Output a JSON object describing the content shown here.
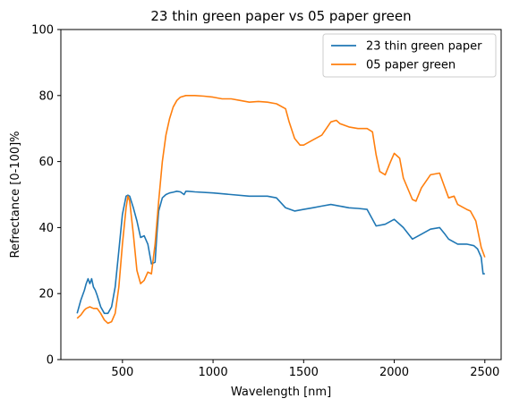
{
  "chart_data": {
    "type": "line",
    "title": "23 thin green paper vs 05 paper green",
    "xlabel": "Wavelength [nm]",
    "ylabel": "Refrectance [0-100]%",
    "xlim": [
      160,
      2590
    ],
    "ylim": [
      0,
      100
    ],
    "xticks": [
      500,
      1000,
      1500,
      2000,
      2500
    ],
    "yticks": [
      0,
      20,
      40,
      60,
      80,
      100
    ],
    "grid": false,
    "legend_position": "top-right",
    "series": [
      {
        "name": "23 thin green paper",
        "color": "#1f77b4",
        "x": [
          250,
          270,
          290,
          300,
          310,
          320,
          330,
          340,
          350,
          360,
          380,
          400,
          420,
          440,
          460,
          480,
          500,
          520,
          530,
          540,
          560,
          580,
          600,
          620,
          640,
          660,
          680,
          690,
          700,
          720,
          740,
          760,
          780,
          800,
          820,
          840,
          850,
          860,
          900,
          1000,
          1100,
          1200,
          1300,
          1350,
          1400,
          1450,
          1500,
          1550,
          1600,
          1650,
          1700,
          1750,
          1800,
          1850,
          1900,
          1950,
          2000,
          2050,
          2100,
          2150,
          2200,
          2250,
          2280,
          2300,
          2350,
          2400,
          2440,
          2460,
          2480,
          2490,
          2500
        ],
        "values": [
          14,
          18,
          21,
          23,
          24.5,
          23,
          24.5,
          22,
          21,
          19.5,
          16,
          14,
          14,
          16,
          22,
          33,
          44,
          49.5,
          49.8,
          49.5,
          46,
          42,
          37,
          37.5,
          35,
          29,
          29.5,
          38,
          45,
          49,
          50,
          50.5,
          50.7,
          51,
          50.8,
          50,
          51,
          51,
          50.8,
          50.5,
          50,
          49.5,
          49.5,
          49,
          46,
          45,
          45.5,
          46,
          46.5,
          47,
          46.5,
          46,
          45.8,
          45.5,
          40.5,
          41,
          42.5,
          40,
          36.5,
          38,
          39.5,
          40,
          38,
          36.5,
          35,
          35,
          34.5,
          33.5,
          31,
          26,
          26
        ]
      },
      {
        "name": "05 paper green",
        "color": "#ff7f0e",
        "x": [
          250,
          270,
          290,
          300,
          320,
          340,
          360,
          380,
          400,
          420,
          440,
          460,
          480,
          500,
          520,
          530,
          540,
          560,
          580,
          600,
          620,
          640,
          660,
          680,
          700,
          720,
          740,
          760,
          780,
          800,
          820,
          850,
          900,
          950,
          1000,
          1050,
          1100,
          1150,
          1200,
          1250,
          1300,
          1350,
          1400,
          1420,
          1450,
          1480,
          1500,
          1550,
          1600,
          1650,
          1680,
          1700,
          1750,
          1800,
          1850,
          1880,
          1900,
          1920,
          1950,
          1980,
          2000,
          2030,
          2050,
          2100,
          2120,
          2150,
          2200,
          2250,
          2280,
          2300,
          2330,
          2350,
          2400,
          2420,
          2450,
          2480,
          2500
        ],
        "values": [
          12.5,
          13.5,
          15,
          15.5,
          16,
          15.5,
          15.5,
          14,
          12,
          11,
          11.5,
          14,
          22,
          35,
          46,
          49.5,
          48,
          38,
          27,
          23,
          24,
          26.5,
          26,
          35,
          48,
          60,
          68,
          73,
          76.5,
          78.5,
          79.5,
          80,
          80,
          79.8,
          79.5,
          79,
          79,
          78.5,
          78,
          78.2,
          78,
          77.5,
          76,
          72,
          67,
          65,
          65,
          66.5,
          68,
          72,
          72.5,
          71.5,
          70.5,
          70,
          70,
          69,
          62,
          57,
          56,
          60,
          62.5,
          61,
          55,
          48.5,
          48,
          52,
          56,
          56.5,
          52,
          49,
          49.5,
          47,
          45.5,
          45,
          42,
          34,
          31
        ]
      }
    ]
  }
}
